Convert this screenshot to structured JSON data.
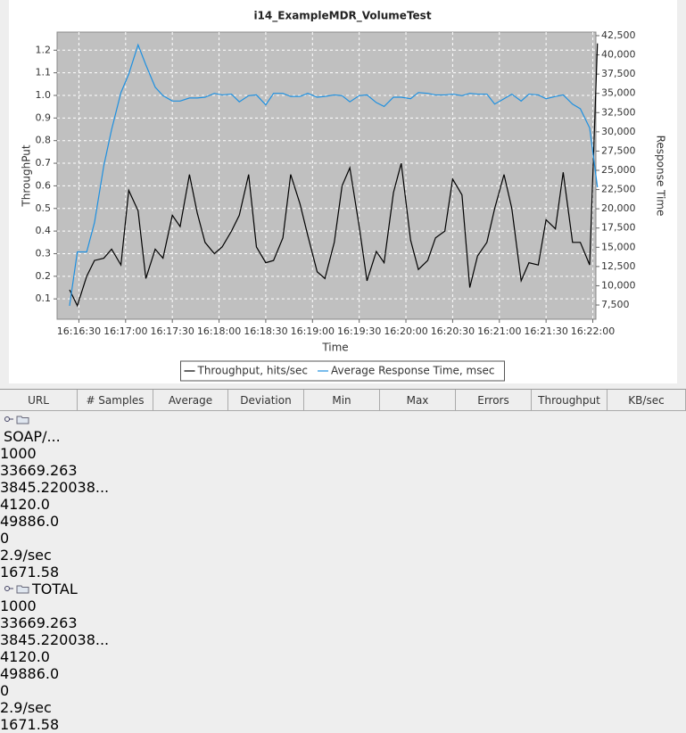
{
  "chart_data": {
    "type": "line",
    "title": "i14_ExampleMDR_VolumeTest",
    "xlabel": "Time",
    "ylabel": "ThroughPut",
    "y2label": "Response Time",
    "x": [
      "16:16:24",
      "16:16:29",
      "16:16:35",
      "16:16:40",
      "16:16:46",
      "16:16:51",
      "16:16:57",
      "16:17:02",
      "16:17:08",
      "16:17:13",
      "16:17:19",
      "16:17:24",
      "16:17:30",
      "16:17:35",
      "16:17:41",
      "16:17:46",
      "16:17:51",
      "16:17:57",
      "16:18:02",
      "16:18:08",
      "16:18:13",
      "16:18:19",
      "16:18:24",
      "16:18:30",
      "16:18:35",
      "16:18:41",
      "16:18:46",
      "16:18:52",
      "16:18:57",
      "16:19:03",
      "16:19:08",
      "16:19:14",
      "16:19:19",
      "16:19:24",
      "16:19:30",
      "16:19:35",
      "16:19:41",
      "16:19:46",
      "16:19:52",
      "16:19:57",
      "16:20:03",
      "16:20:08",
      "16:20:14",
      "16:20:19",
      "16:20:25",
      "16:20:30",
      "16:20:36",
      "16:20:41",
      "16:20:46",
      "16:20:52",
      "16:20:57",
      "16:21:03",
      "16:21:08",
      "16:21:14",
      "16:21:19",
      "16:21:25",
      "16:21:30",
      "16:21:36",
      "16:21:41",
      "16:21:47",
      "16:21:52",
      "16:21:58",
      "16:22:03"
    ],
    "series": [
      {
        "name": "Throughput, hits/sec",
        "color": "#000000",
        "axis": "y",
        "values": [
          0.14,
          0.07,
          0.2,
          0.27,
          0.28,
          0.32,
          0.25,
          0.58,
          0.49,
          0.19,
          0.32,
          0.28,
          0.47,
          0.42,
          0.65,
          0.48,
          0.35,
          0.3,
          0.33,
          0.4,
          0.47,
          0.65,
          0.33,
          0.26,
          0.27,
          0.37,
          0.65,
          0.52,
          0.38,
          0.22,
          0.19,
          0.35,
          0.6,
          0.68,
          0.42,
          0.18,
          0.31,
          0.26,
          0.57,
          0.7,
          0.36,
          0.23,
          0.27,
          0.37,
          0.4,
          0.63,
          0.56,
          0.15,
          0.29,
          0.35,
          0.5,
          0.65,
          0.5,
          0.18,
          0.26,
          0.25,
          0.45,
          0.41,
          0.66,
          0.35,
          0.35,
          0.25,
          1.23
        ]
      },
      {
        "name": "Average Response Time, msec",
        "color": "#1e90e0",
        "axis": "y2",
        "values": [
          7400,
          14400,
          14400,
          18200,
          25600,
          30300,
          35100,
          37500,
          41300,
          38700,
          35800,
          34700,
          34000,
          34000,
          34400,
          34400,
          34500,
          35000,
          34800,
          34900,
          33900,
          34700,
          34800,
          33500,
          35000,
          35000,
          34600,
          34600,
          35000,
          34500,
          34600,
          34800,
          34700,
          33900,
          34700,
          34800,
          33800,
          33300,
          34500,
          34500,
          34300,
          35100,
          35000,
          34800,
          34800,
          34900,
          34700,
          35000,
          34900,
          34900,
          33600,
          34300,
          34900,
          34000,
          34900,
          34800,
          34300,
          34600,
          34800,
          33600,
          33000,
          30500,
          22800
        ]
      }
    ],
    "xlim": [
      "16:16:16",
      "16:22:02"
    ],
    "xticks": [
      "16:16:30",
      "16:17:00",
      "16:17:30",
      "16:18:00",
      "16:18:30",
      "16:19:00",
      "16:19:30",
      "16:20:00",
      "16:20:30",
      "16:21:00",
      "16:21:30",
      "16:22:00"
    ],
    "ylim": [
      0.01,
      1.28
    ],
    "yticks": [
      0.1,
      0.2,
      0.3,
      0.4,
      0.5,
      0.6,
      0.7,
      0.8,
      0.9,
      {
        "value": 1,
        "label": "1.0"
      },
      1.1,
      1.2
    ],
    "y2lim": [
      5650,
      42960
    ],
    "y2ticks": [
      {
        "value": 7500,
        "label": "7,500"
      },
      {
        "value": 10000,
        "label": "10,000"
      },
      {
        "value": 12500,
        "label": "12,500"
      },
      {
        "value": 15000,
        "label": "15,000"
      },
      {
        "value": 17500,
        "label": "17,500"
      },
      {
        "value": 20000,
        "label": "20,000"
      },
      {
        "value": 22500,
        "label": "22,500"
      },
      {
        "value": 25000,
        "label": "25,000"
      },
      {
        "value": 27500,
        "label": "27,500"
      },
      {
        "value": 30000,
        "label": "30,000"
      },
      {
        "value": 32500,
        "label": "32,500"
      },
      {
        "value": 35000,
        "label": "35,000"
      },
      {
        "value": 37500,
        "label": "37,500"
      },
      {
        "value": 40000,
        "label": "40,000"
      },
      {
        "value": 42500,
        "label": "42,500"
      }
    ],
    "grid": true,
    "legend": "bottom",
    "plot_background": "#c0c0c0"
  },
  "table": {
    "columns": [
      "URL",
      "# Samples",
      "Average",
      "Deviation",
      "Min",
      "Max",
      "Errors",
      "Throughput",
      "KB/sec"
    ],
    "rows": [
      [
        "SOAP/...",
        "1000",
        "33669.263",
        "3845.220038...",
        "4120.0",
        "49886.0",
        "0",
        "2.9/sec",
        "1671.58"
      ],
      [
        "TOTAL",
        "1000",
        "33669.263",
        "3845.220038...",
        "4120.0",
        "49886.0",
        "0",
        "2.9/sec",
        "1671.58"
      ]
    ]
  }
}
